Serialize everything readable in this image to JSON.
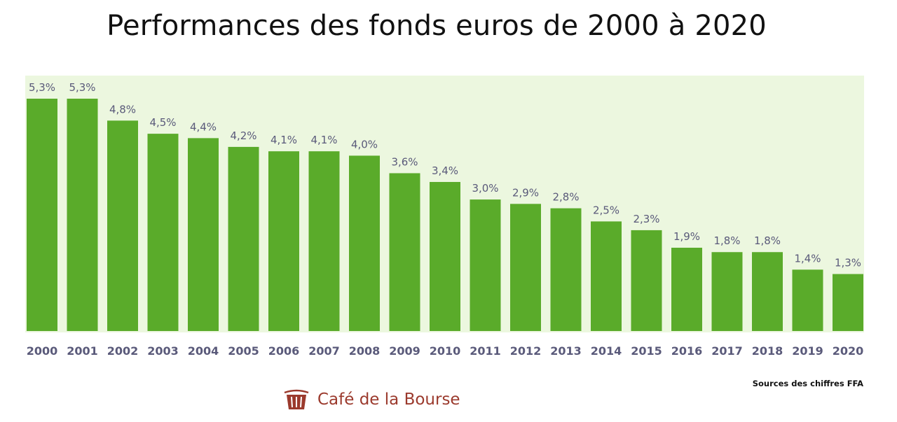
{
  "chart_data": {
    "type": "bar",
    "title": "Performances des fonds euros de 2000 à 2020",
    "xlabel": "",
    "ylabel": "",
    "categories": [
      "2000",
      "2001",
      "2002",
      "2003",
      "2004",
      "2005",
      "2006",
      "2007",
      "2008",
      "2009",
      "2010",
      "2011",
      "2012",
      "2013",
      "2014",
      "2015",
      "2016",
      "2017",
      "2018",
      "2019",
      "2020"
    ],
    "values": [
      5.3,
      5.3,
      4.8,
      4.5,
      4.4,
      4.2,
      4.1,
      4.1,
      4.0,
      3.6,
      3.4,
      3.0,
      2.9,
      2.8,
      2.5,
      2.3,
      1.9,
      1.8,
      1.8,
      1.4,
      1.3
    ],
    "value_labels": [
      "5,3%",
      "5,3%",
      "4,8%",
      "4,5%",
      "4,4%",
      "4,2%",
      "4,1%",
      "4,1%",
      "4,0%",
      "3,6%",
      "3,4%",
      "3,0%",
      "2,9%",
      "2,8%",
      "2,5%",
      "2,3%",
      "1,9%",
      "1,8%",
      "1,8%",
      "1,4%",
      "1,3%"
    ],
    "ylim": [
      0,
      5.3
    ],
    "grid": false,
    "legend": "none",
    "colors": {
      "bar": "#5aab2a",
      "plot_background": "#ecf7df",
      "value_label": "#5a5a7a",
      "tick_label": "#5a5a7a"
    }
  },
  "source_text": "Sources des chiffres FFA",
  "brand": {
    "name": "Café de la Bourse",
    "icon": "trash-can-logo-icon",
    "color": "#9b3a2d"
  }
}
